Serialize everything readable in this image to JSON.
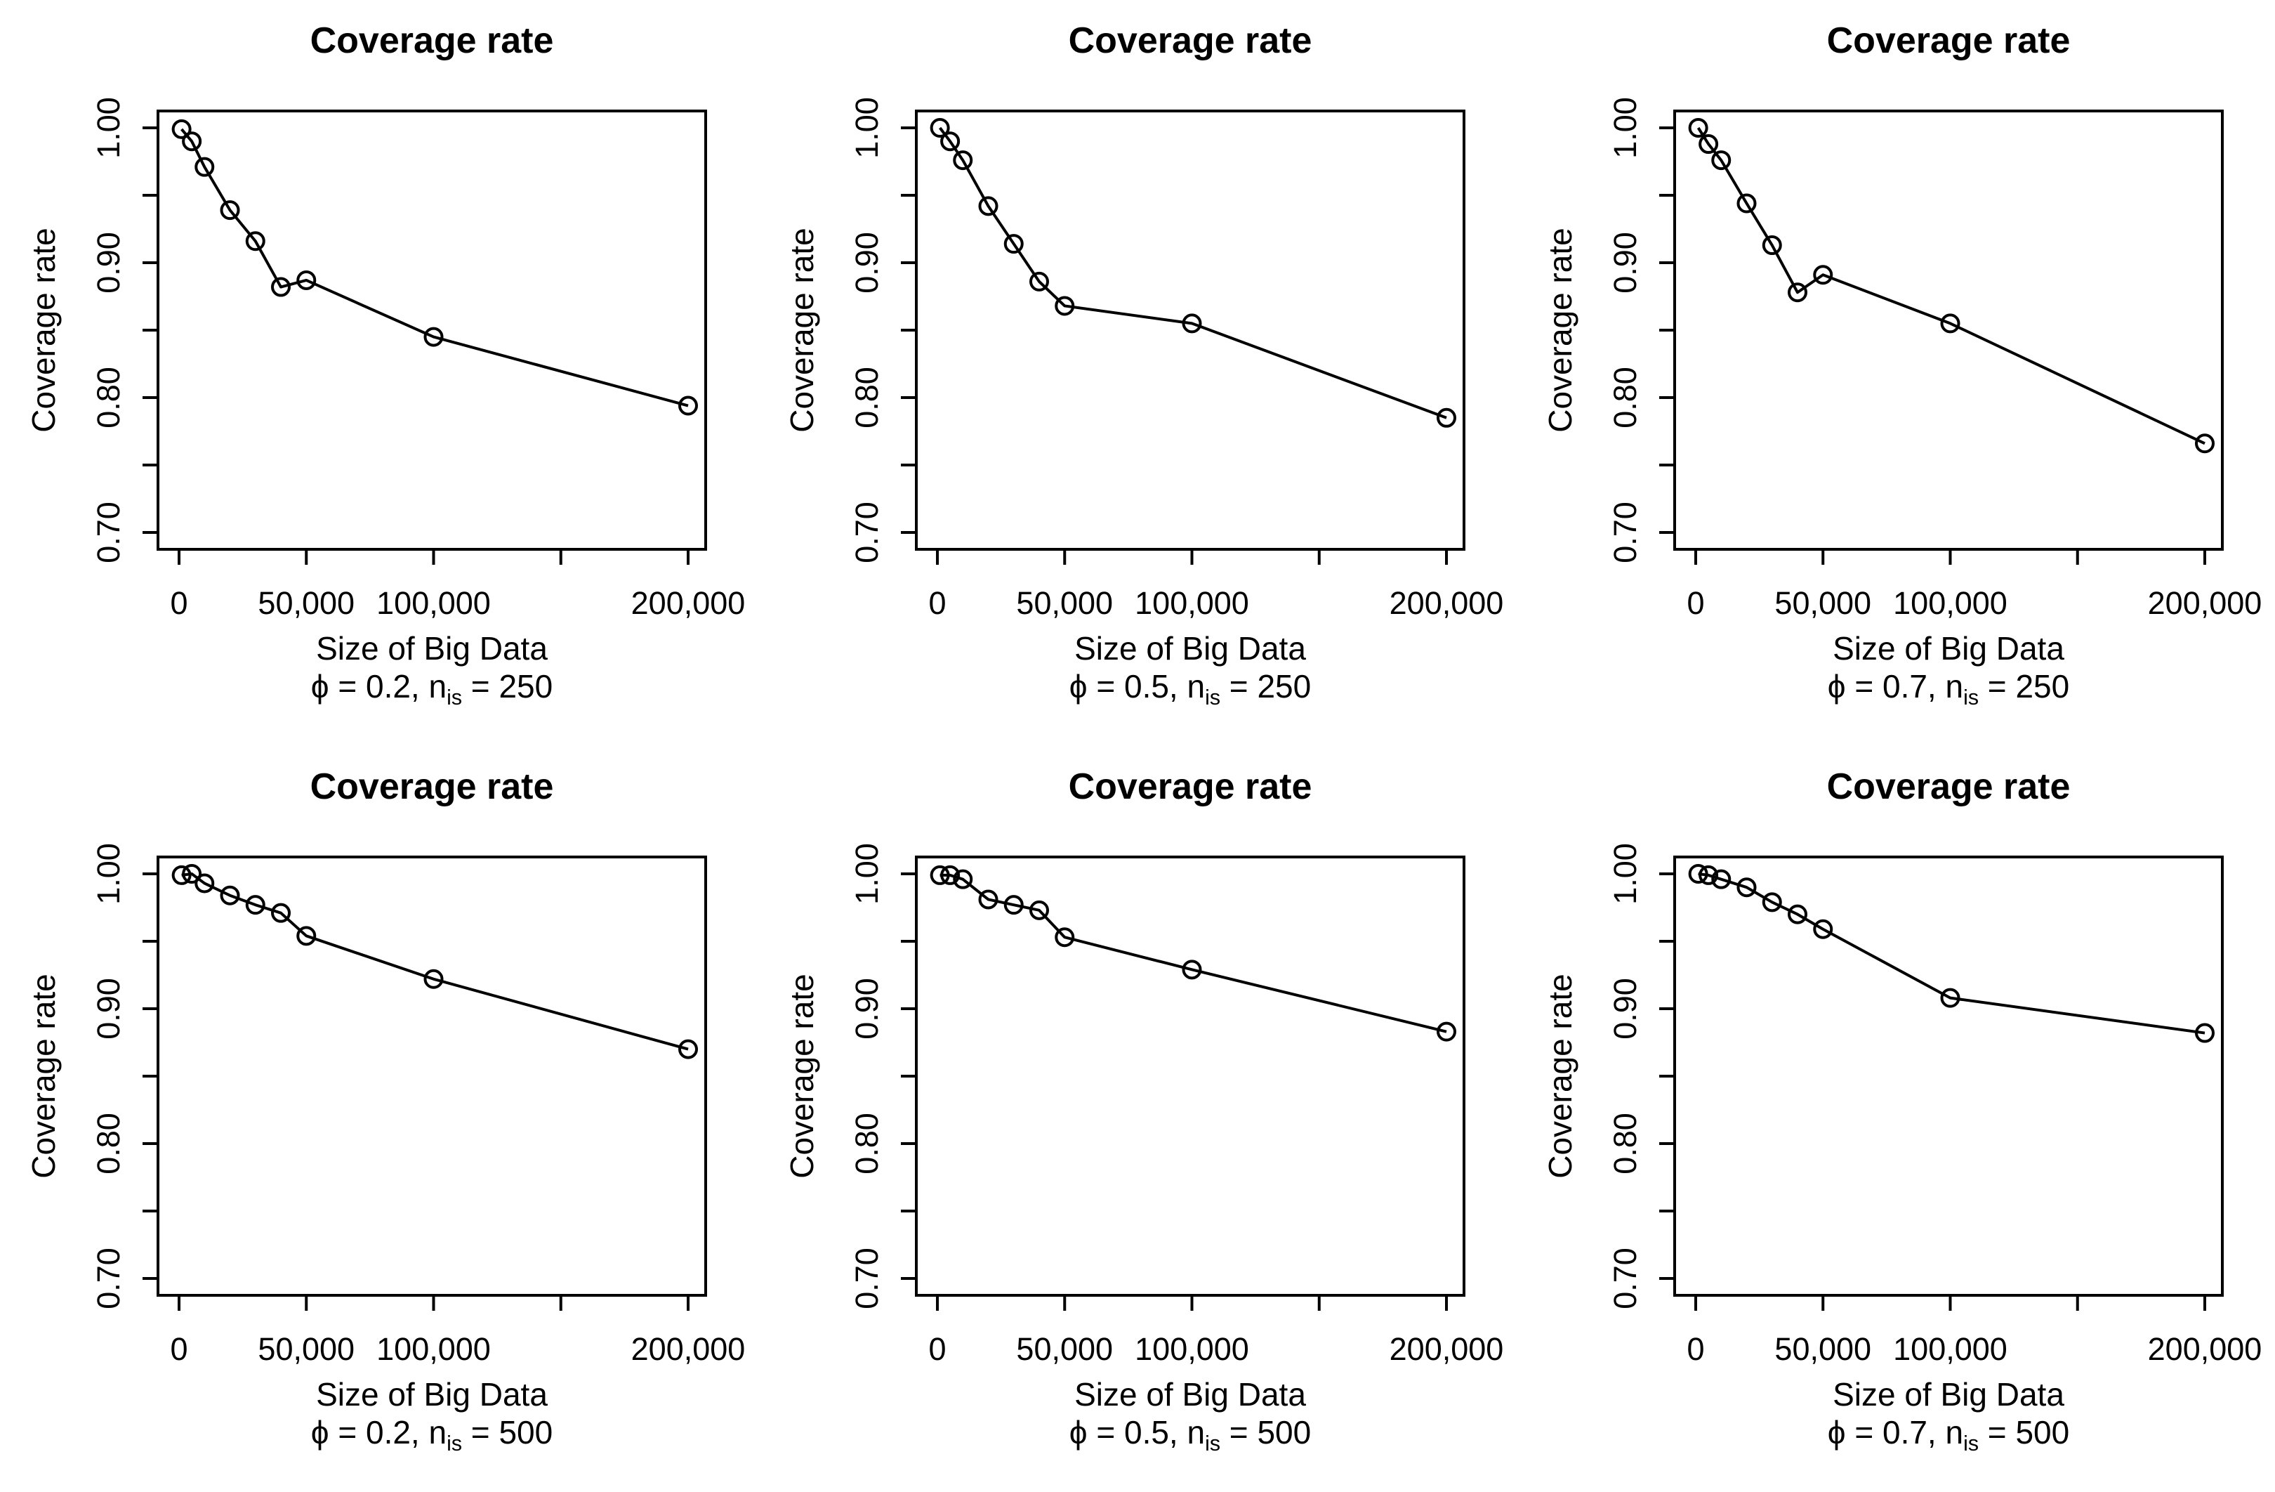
{
  "colors": {
    "line": "#000000",
    "background": "#ffffff"
  },
  "axis": {
    "xlim": [
      0,
      200000
    ],
    "ylim": [
      0.7,
      1.0
    ],
    "grid": false,
    "x_ticks": [
      {
        "value": 0,
        "label": "0"
      },
      {
        "value": 50000,
        "label": "50,000"
      },
      {
        "value": 100000,
        "label": "100,000"
      },
      {
        "value": 150000,
        "label": ""
      },
      {
        "value": 200000,
        "label": "200,000"
      }
    ],
    "y_major_ticks": [
      {
        "value": 0.7,
        "label": "0.70"
      },
      {
        "value": 0.8,
        "label": "0.80"
      },
      {
        "value": 0.9,
        "label": "0.90"
      },
      {
        "value": 1.0,
        "label": "1.00"
      }
    ],
    "y_minor_ticks": [
      0.75,
      0.85,
      0.95
    ]
  },
  "chart_data": [
    {
      "type": "line",
      "marker": "open-circle",
      "title": "Coverage rate",
      "ylabel": "Coverage rate",
      "xlabel": "Size of Big Data",
      "phi": "0.2",
      "n_is": "250",
      "param_label": {
        "pre": "ϕ = 0.2, n",
        "sub": "is",
        "post": " = 250"
      },
      "x": [
        1000,
        5000,
        10000,
        20000,
        30000,
        40000,
        50000,
        100000,
        200000
      ],
      "values": [
        0.999,
        0.99,
        0.971,
        0.939,
        0.916,
        0.882,
        0.887,
        0.845,
        0.794
      ]
    },
    {
      "type": "line",
      "marker": "open-circle",
      "title": "Coverage rate",
      "ylabel": "Coverage rate",
      "xlabel": "Size of Big Data",
      "phi": "0.5",
      "n_is": "250",
      "param_label": {
        "pre": "ϕ = 0.5, n",
        "sub": "is",
        "post": " = 250"
      },
      "x": [
        1000,
        5000,
        10000,
        20000,
        30000,
        40000,
        50000,
        100000,
        200000
      ],
      "values": [
        1.0,
        0.99,
        0.976,
        0.942,
        0.914,
        0.886,
        0.868,
        0.855,
        0.785
      ]
    },
    {
      "type": "line",
      "marker": "open-circle",
      "title": "Coverage rate",
      "ylabel": "Coverage rate",
      "xlabel": "Size of Big Data",
      "phi": "0.7",
      "n_is": "250",
      "param_label": {
        "pre": "ϕ = 0.7, n",
        "sub": "is",
        "post": " = 250"
      },
      "x": [
        1000,
        5000,
        10000,
        20000,
        30000,
        40000,
        50000,
        100000,
        200000
      ],
      "values": [
        1.0,
        0.988,
        0.976,
        0.944,
        0.913,
        0.878,
        0.891,
        0.855,
        0.766
      ]
    },
    {
      "type": "line",
      "marker": "open-circle",
      "title": "Coverage rate",
      "ylabel": "Coverage rate",
      "xlabel": "Size of Big Data",
      "phi": "0.2",
      "n_is": "500",
      "param_label": {
        "pre": "ϕ = 0.2, n",
        "sub": "is",
        "post": " = 500"
      },
      "x": [
        1000,
        5000,
        10000,
        20000,
        30000,
        40000,
        50000,
        100000,
        200000
      ],
      "values": [
        0.999,
        1.0,
        0.993,
        0.984,
        0.977,
        0.971,
        0.954,
        0.922,
        0.87
      ]
    },
    {
      "type": "line",
      "marker": "open-circle",
      "title": "Coverage rate",
      "ylabel": "Coverage rate",
      "xlabel": "Size of Big Data",
      "phi": "0.5",
      "n_is": "500",
      "param_label": {
        "pre": "ϕ = 0.5, n",
        "sub": "is",
        "post": " = 500"
      },
      "x": [
        1000,
        5000,
        10000,
        20000,
        30000,
        40000,
        50000,
        100000,
        200000
      ],
      "values": [
        0.999,
        0.999,
        0.996,
        0.981,
        0.977,
        0.973,
        0.953,
        0.929,
        0.883
      ]
    },
    {
      "type": "line",
      "marker": "open-circle",
      "title": "Coverage rate",
      "ylabel": "Coverage rate",
      "xlabel": "Size of Big Data",
      "phi": "0.7",
      "n_is": "500",
      "param_label": {
        "pre": "ϕ = 0.7, n",
        "sub": "is",
        "post": " = 500"
      },
      "x": [
        1000,
        5000,
        10000,
        20000,
        30000,
        40000,
        50000,
        100000,
        200000
      ],
      "values": [
        1.0,
        0.999,
        0.996,
        0.99,
        0.979,
        0.97,
        0.959,
        0.908,
        0.882
      ]
    }
  ]
}
